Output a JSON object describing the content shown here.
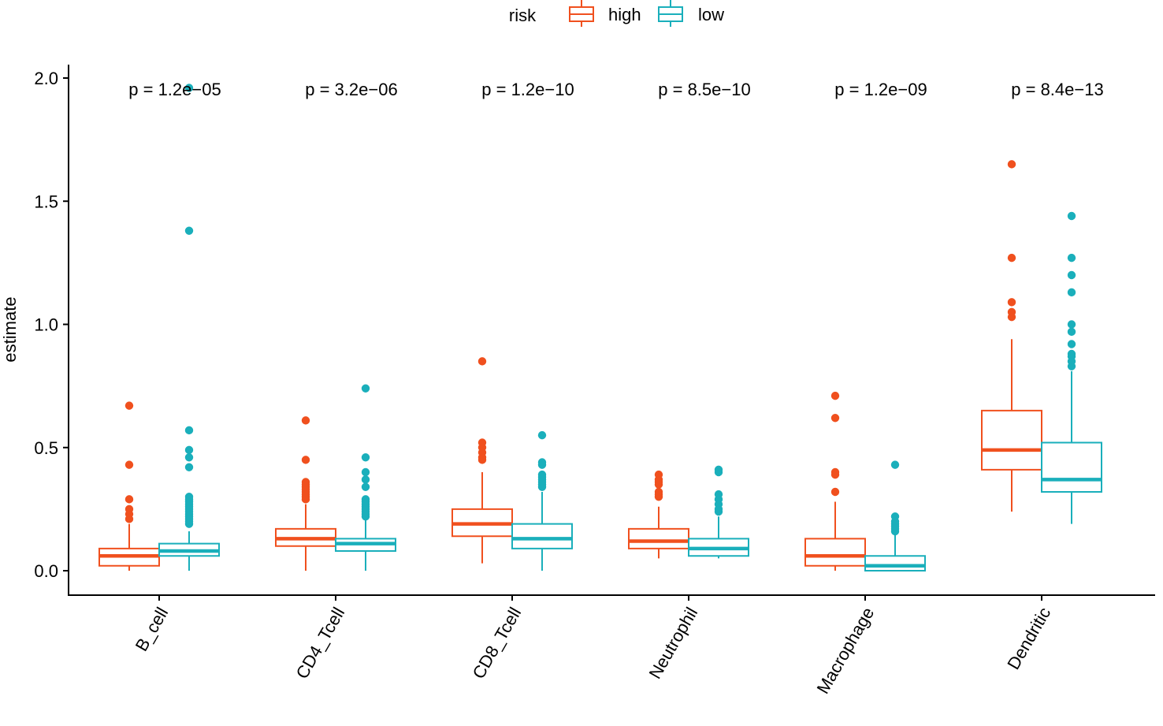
{
  "chart_data": {
    "type": "boxplot",
    "title": "",
    "xlabel": "",
    "ylabel": "estimate",
    "ylim": [
      -0.1,
      2.05
    ],
    "yticks": [
      0.0,
      0.5,
      1.0,
      1.5,
      2.0
    ],
    "ytick_labels": [
      "0.0",
      "0.5",
      "1.0",
      "1.5",
      "2.0"
    ],
    "legend": {
      "title": "risk",
      "position": "top",
      "entries": [
        {
          "name": "high",
          "color": "#F0501E"
        },
        {
          "name": "low",
          "color": "#1AAFBB"
        }
      ]
    },
    "categories": [
      "B_cell",
      "CD4_Tcell",
      "CD8_Tcell",
      "Neutrophil",
      "Macrophage",
      "Dendritic"
    ],
    "p_values": [
      "p = 1.2e−05",
      "p = 3.2e−06",
      "p = 1.2e−10",
      "p = 8.5e−10",
      "p = 1.2e−09",
      "p = 8.4e−13"
    ],
    "series": [
      {
        "name": "high",
        "color": "#F0501E",
        "boxes": [
          {
            "min": 0.0,
            "q1": 0.02,
            "median": 0.06,
            "q3": 0.09,
            "max": 0.19,
            "outliers": [
              0.21,
              0.23,
              0.25,
              0.29,
              0.43,
              0.67
            ]
          },
          {
            "min": 0.0,
            "q1": 0.1,
            "median": 0.13,
            "q3": 0.17,
            "max": 0.27,
            "outliers": [
              0.29,
              0.3,
              0.31,
              0.32,
              0.33,
              0.34,
              0.35,
              0.36,
              0.45,
              0.61
            ]
          },
          {
            "min": 0.03,
            "q1": 0.14,
            "median": 0.19,
            "q3": 0.25,
            "max": 0.4,
            "outliers": [
              0.45,
              0.46,
              0.48,
              0.5,
              0.52,
              0.85
            ]
          },
          {
            "min": 0.05,
            "q1": 0.09,
            "median": 0.12,
            "q3": 0.17,
            "max": 0.26,
            "outliers": [
              0.3,
              0.31,
              0.32,
              0.35,
              0.36,
              0.37,
              0.39
            ]
          },
          {
            "min": 0.0,
            "q1": 0.02,
            "median": 0.06,
            "q3": 0.13,
            "max": 0.28,
            "outliers": [
              0.32,
              0.39,
              0.4,
              0.62,
              0.71
            ]
          },
          {
            "min": 0.24,
            "q1": 0.41,
            "median": 0.49,
            "q3": 0.65,
            "max": 0.94,
            "outliers": [
              1.03,
              1.05,
              1.09,
              1.27,
              1.65
            ]
          }
        ]
      },
      {
        "name": "low",
        "color": "#1AAFBB",
        "boxes": [
          {
            "min": 0.0,
            "q1": 0.06,
            "median": 0.08,
            "q3": 0.11,
            "max": 0.16,
            "outliers": [
              0.19,
              0.2,
              0.21,
              0.22,
              0.23,
              0.24,
              0.25,
              0.26,
              0.27,
              0.28,
              0.29,
              0.3,
              0.42,
              0.46,
              0.49,
              0.57,
              1.38,
              1.96
            ]
          },
          {
            "min": 0.0,
            "q1": 0.08,
            "median": 0.11,
            "q3": 0.13,
            "max": 0.21,
            "outliers": [
              0.22,
              0.23,
              0.24,
              0.25,
              0.26,
              0.27,
              0.28,
              0.29,
              0.34,
              0.37,
              0.4,
              0.46,
              0.74
            ]
          },
          {
            "min": 0.0,
            "q1": 0.09,
            "median": 0.13,
            "q3": 0.19,
            "max": 0.32,
            "outliers": [
              0.34,
              0.35,
              0.36,
              0.37,
              0.38,
              0.39,
              0.43,
              0.44,
              0.55
            ]
          },
          {
            "min": 0.05,
            "q1": 0.06,
            "median": 0.09,
            "q3": 0.13,
            "max": 0.22,
            "outliers": [
              0.24,
              0.25,
              0.27,
              0.29,
              0.31,
              0.4,
              0.41
            ]
          },
          {
            "min": 0.0,
            "q1": 0.0,
            "median": 0.02,
            "q3": 0.06,
            "max": 0.15,
            "outliers": [
              0.16,
              0.17,
              0.18,
              0.19,
              0.2,
              0.22,
              0.43
            ]
          },
          {
            "min": 0.19,
            "q1": 0.32,
            "median": 0.37,
            "q3": 0.52,
            "max": 0.81,
            "outliers": [
              0.83,
              0.85,
              0.87,
              0.88,
              0.92,
              0.97,
              1.0,
              1.13,
              1.2,
              1.27,
              1.44
            ]
          }
        ]
      }
    ]
  }
}
